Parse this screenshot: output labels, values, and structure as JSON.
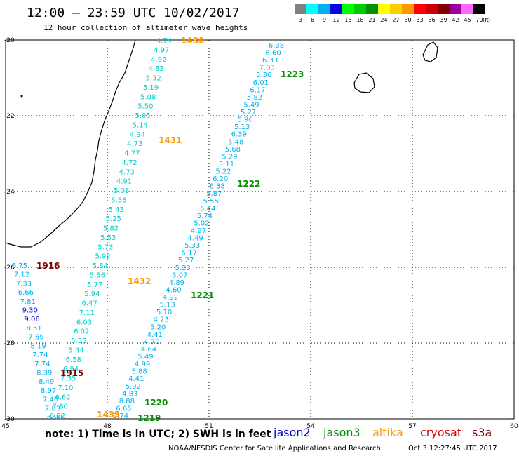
{
  "header": {
    "title": "12:00 — 23:59 UTC 10/02/2017",
    "subtitle": "12 hour collection of altimeter wave heights"
  },
  "color_scale": {
    "unit": "(ft)",
    "swatches": [
      {
        "label": "3",
        "color": "#808080"
      },
      {
        "label": "6",
        "color": "#00ffff"
      },
      {
        "label": "9",
        "color": "#00b0f0"
      },
      {
        "label": "12",
        "color": "#0000e0"
      },
      {
        "label": "15",
        "color": "#00ff00"
      },
      {
        "label": "18",
        "color": "#00cc00"
      },
      {
        "label": "21",
        "color": "#009000"
      },
      {
        "label": "24",
        "color": "#ffff00"
      },
      {
        "label": "27",
        "color": "#ffcc00"
      },
      {
        "label": "30",
        "color": "#ff9900"
      },
      {
        "label": "33",
        "color": "#ff0000"
      },
      {
        "label": "36",
        "color": "#cc0000"
      },
      {
        "label": "39",
        "color": "#800000"
      },
      {
        "label": "42",
        "color": "#990099"
      },
      {
        "label": "45",
        "color": "#ff66ff"
      },
      {
        "label": "70",
        "color": "#000000"
      }
    ]
  },
  "axes": {
    "lon": {
      "min": 45,
      "max": 60,
      "ticks": [
        "45",
        "48",
        "51",
        "54",
        "57",
        "60"
      ]
    },
    "lat": {
      "min": -30,
      "max": -20,
      "ticks": [
        "-20",
        "-22",
        "-24",
        "-26",
        "-28",
        "-30"
      ]
    }
  },
  "tracks": [
    {
      "label": "1430",
      "label_color": "#ff9900",
      "color": "#00cccc",
      "values": [
        "4.74",
        "4.97",
        "4.92",
        "4.83",
        "5.32",
        "5.19",
        "5.08",
        "5.50",
        "5.05",
        "5.14",
        "4.94",
        "4.73",
        "4.77",
        "4.72",
        "4.73",
        "4.91",
        "5.08",
        "5.56",
        "5.43",
        "5.25",
        "5.82",
        "5.53",
        "5.73",
        "5.92",
        "5.84",
        "5.56",
        "5.77",
        "5.94",
        "6.47",
        "7.11",
        "6.03",
        "6.02",
        "5.55",
        "5.44",
        "6.58",
        "6.94",
        "7.35",
        "7.10",
        "6.62",
        "7.80",
        "6.52"
      ]
    },
    {
      "label": "1223",
      "label_color": "#009000",
      "color": "#00b0f0",
      "values": [
        "6.38",
        "6.60",
        "6.33",
        "7.03",
        "5.36",
        "6.01",
        "6.17",
        "5.82",
        "5.49",
        "5.27",
        "5.96",
        "5.13",
        "6.39",
        "5.48",
        "5.68",
        "5.29",
        "5.11",
        "5.22",
        "6.20",
        "6.38",
        "5.87",
        "5.55",
        "5.44",
        "5.74",
        "5.02",
        "4.97",
        "4.49",
        "5.33",
        "5.17",
        "5.27",
        "5.23",
        "5.07",
        "4.89",
        "4.60",
        "4.92",
        "5.13",
        "5.10",
        "4.23",
        "5.20",
        "4.41",
        "4.70",
        "4.64",
        "5.49",
        "4.99",
        "5.88",
        "4.41",
        "5.92",
        "4.83",
        "8.88",
        "6.65",
        "5.74"
      ]
    },
    {
      "label": "1916",
      "label_color": "#800000",
      "color": "#00b0f0",
      "values": [
        "6.75",
        "7.12",
        "7.33",
        "6.66",
        "7.81",
        "9.30",
        "9.06",
        "8.51",
        "7.69",
        "8.19",
        "7.74",
        "7.74",
        "8.39",
        "8.49",
        "8.97",
        "7.46",
        "7.83",
        "6.99"
      ]
    }
  ],
  "annotations": [
    {
      "text": "1430",
      "color": "#ff9900"
    },
    {
      "text": "1431",
      "color": "#ff9900"
    },
    {
      "text": "1432",
      "color": "#ff9900"
    },
    {
      "text": "1433",
      "color": "#ff9900"
    },
    {
      "text": "1223",
      "color": "#009000"
    },
    {
      "text": "1222",
      "color": "#009000"
    },
    {
      "text": "1221",
      "color": "#009000"
    },
    {
      "text": "1220",
      "color": "#009000"
    },
    {
      "text": "1219",
      "color": "#009000"
    },
    {
      "text": "1916",
      "color": "#800000"
    },
    {
      "text": "1915",
      "color": "#800000"
    }
  ],
  "footer": {
    "note": "note: 1) Time is in UTC; 2) SWH is in feet",
    "satellites": [
      {
        "name": "jason2",
        "color": "#0000e0"
      },
      {
        "name": "jason3",
        "color": "#009000"
      },
      {
        "name": "altika",
        "color": "#ff9900"
      },
      {
        "name": "cryosat",
        "color": "#e00000"
      },
      {
        "name": "s3a",
        "color": "#800000"
      }
    ],
    "credit": "NOAA/NESDIS Center for Satellite Applications and Research",
    "timestamp": "Oct  3 12:27:45 UTC 2017"
  }
}
